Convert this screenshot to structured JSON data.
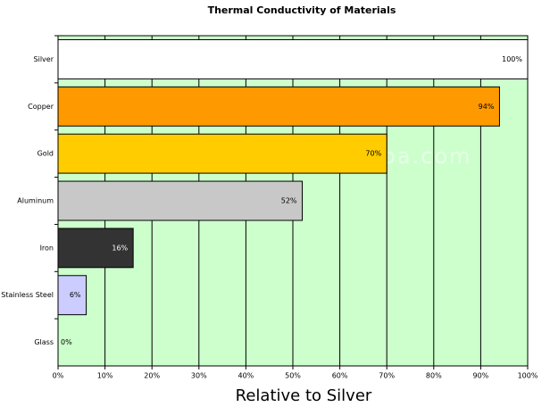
{
  "chart_data": {
    "type": "bar",
    "orientation": "horizontal",
    "title": "Thermal Conductivity of Materials",
    "x_label": "Relative to Silver",
    "watermark": "hx-cookware.en.alibaba.com",
    "categories": [
      "Silver",
      "Copper",
      "Gold",
      "Aluminum",
      "Iron",
      "Stainless Steel",
      "Glass"
    ],
    "values": [
      100,
      94,
      70,
      52,
      16,
      6,
      0
    ],
    "value_labels": [
      "100%",
      "94%",
      "70%",
      "52%",
      "16%",
      "6%",
      "0%"
    ],
    "colors": [
      "#ffffff",
      "#ff9900",
      "#ffcc00",
      "#c8c8c8",
      "#333333",
      "#ccccff",
      "#ffffff"
    ],
    "xlim": [
      0,
      100
    ],
    "xticks": [
      {
        "value": 0,
        "label": "0%"
      },
      {
        "value": 10,
        "label": "10%"
      },
      {
        "value": 20,
        "label": "20%"
      },
      {
        "value": 30,
        "label": "30%"
      },
      {
        "value": 40,
        "label": "40%"
      },
      {
        "value": 50,
        "label": "50%"
      },
      {
        "value": 60,
        "label": "60%"
      },
      {
        "value": 70,
        "label": "70%"
      },
      {
        "value": 80,
        "label": "80%"
      },
      {
        "value": 90,
        "label": "90%"
      },
      {
        "value": 100,
        "label": "100%"
      }
    ],
    "grid": true,
    "plot_background": "#ccffcc"
  }
}
